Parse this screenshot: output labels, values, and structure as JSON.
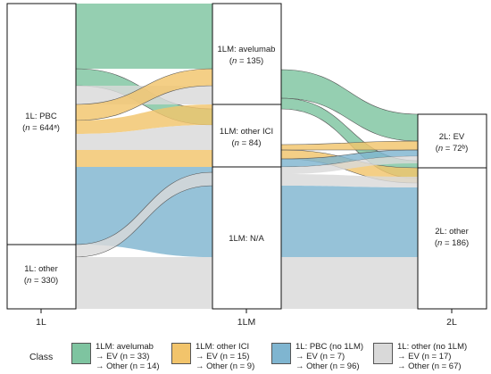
{
  "nodes": {
    "pbc_1l": {
      "line1": "1L: PBC",
      "line2_prefix": "(",
      "n_italic": "n",
      "line2_suffix": " = 644ᵃ)"
    },
    "other_1l": {
      "line1": "1L: other",
      "line2_prefix": "(",
      "n_italic": "n",
      "line2_suffix": " = 330)"
    },
    "avelumab_1lm": {
      "line1": "1LM: avelumab",
      "line2_prefix": "(",
      "n_italic": "n",
      "line2_suffix": " = 135)"
    },
    "otherici_1lm": {
      "line1": "1LM: other ICI",
      "line2_prefix": "(",
      "n_italic": "n",
      "line2_suffix": " = 84)"
    },
    "na_1lm": {
      "line1": "1LM: N/A"
    },
    "ev_2l": {
      "line1": "2L: EV",
      "line2_prefix": "(",
      "n_italic": "n",
      "line2_suffix": " = 72ᵇ)"
    },
    "other_2l": {
      "line1": "2L: other",
      "line2_prefix": "(",
      "n_italic": "n",
      "line2_suffix": " = 186)"
    }
  },
  "axis_labels": {
    "col1": "1L",
    "col2": "1LM",
    "col3": "2L"
  },
  "colors": {
    "avelumab": "#7ec4a0",
    "otherici": "#f2c46b",
    "pbc": "#7fb5d0",
    "other": "#d9d9d9"
  },
  "legend": {
    "title": "Class",
    "items": [
      {
        "key": "avelumab",
        "color": "#7ec4a0",
        "line1": "1LM: avelumab",
        "line2": "→ EV (n = 33)",
        "line3": "→ Other (n = 14)"
      },
      {
        "key": "otherici",
        "color": "#f2c46b",
        "line1": "1LM: other ICI",
        "line2": "→ EV (n = 15)",
        "line3": "→ Other (n = 9)"
      },
      {
        "key": "pbc",
        "color": "#7fb5d0",
        "line1": "1L: PBC (no 1LM)",
        "line2": "→ EV (n = 7)",
        "line3": "→ Other (n = 96)"
      },
      {
        "key": "other",
        "color": "#d9d9d9",
        "line1": "1L: other (no 1LM)",
        "line2": "→ EV (n = 17)",
        "line3": "→ Other (n = 67)"
      }
    ]
  }
}
